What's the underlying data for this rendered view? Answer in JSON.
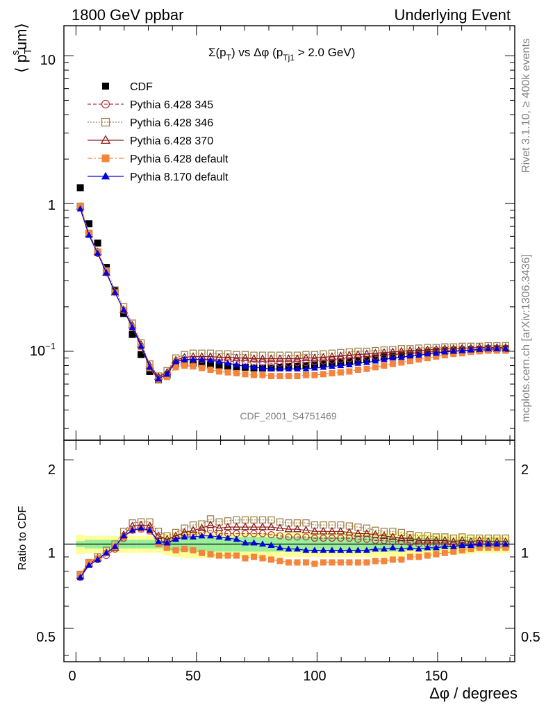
{
  "header": {
    "left": "1800 GeV ppbar",
    "right": "Underlying Event"
  },
  "side": {
    "rivet": "Rivet 3.1.10, ≥ 400k events",
    "mcplots": "mcplots.cern.ch [arXiv:1306.3436]"
  },
  "watermark": "CDF_2001_S4751469",
  "main_title": {
    "prefix": "Σ(p",
    "sub1": "T",
    "mid": ") vs Δφ (p",
    "sub2": "Tj1",
    "suffix": " > 2.0 GeV)"
  },
  "ylabel": {
    "open": "⟨ p",
    "sub": "T",
    "sup": "s",
    "rest": "um⟩"
  },
  "ratio_ylabel": "Ratio to CDF",
  "xlabel": "Δφ / degrees",
  "main_ticks": {
    "ten": "10",
    "one": "1",
    "tenth_base": "10",
    "tenth_exp": "−1"
  },
  "ratio_ticks": [
    "2",
    "1",
    "0.5"
  ],
  "x_ticks": [
    "0",
    "50",
    "100",
    "150"
  ],
  "legend": [
    {
      "label": "CDF",
      "color": "#000000",
      "marker": "filled-square"
    },
    {
      "label": "Pythia 6.428 345",
      "color": "#b03a48",
      "marker": "open-circle"
    },
    {
      "label": "Pythia 6.428 346",
      "color": "#a0804b",
      "marker": "open-square"
    },
    {
      "label": "Pythia 6.428 370",
      "color": "#8b1a1a",
      "marker": "open-triangle"
    },
    {
      "label": "Pythia 6.428 default",
      "color": "#f5843c",
      "marker": "filled-square"
    },
    {
      "label": "Pythia 8.170 default",
      "color": "#0000dd",
      "marker": "filled-triangle"
    }
  ],
  "chart_data": {
    "type": "scatter",
    "x_unit": "degrees",
    "x": [
      1.8,
      5.4,
      9,
      12.6,
      16.2,
      19.8,
      23.4,
      27,
      30.6,
      34.2,
      37.8,
      41.4,
      45,
      48.6,
      52.2,
      55.8,
      59.4,
      63,
      66.6,
      70.2,
      73.8,
      77.4,
      81,
      84.6,
      88.2,
      91.8,
      95.4,
      99,
      102.6,
      106.2,
      109.8,
      113.4,
      117,
      120.6,
      124.2,
      127.8,
      131.4,
      135,
      138.6,
      142.2,
      145.8,
      149.4,
      153,
      156.6,
      160.2,
      163.8,
      167.4,
      171,
      174.6,
      178.2
    ],
    "xlim": [
      -5,
      182
    ],
    "main_ylim": [
      0.025,
      16
    ],
    "main_yscale": "log",
    "ratio_ylim": [
      0.38,
      2.35
    ],
    "ratio_yscale": "log",
    "series": [
      {
        "name": "CDF",
        "values": [
          1.28,
          0.73,
          0.54,
          0.37,
          0.26,
          0.18,
          0.13,
          0.095,
          0.073,
          0.064,
          0.069,
          0.082,
          0.083,
          0.083,
          0.082,
          0.081,
          0.08,
          0.079,
          0.078,
          0.078,
          0.077,
          0.077,
          0.077,
          0.078,
          0.079,
          0.079,
          0.08,
          0.081,
          0.082,
          0.083,
          0.084,
          0.085,
          0.087,
          0.088,
          0.09,
          0.092,
          0.093,
          0.095,
          0.096,
          0.098,
          0.099,
          0.1,
          0.101,
          0.102,
          0.102,
          0.103,
          0.103,
          0.104,
          0.104,
          0.104
        ]
      },
      {
        "name": "Pythia 6.428 345",
        "values": [
          0.94,
          0.62,
          0.46,
          0.34,
          0.25,
          0.19,
          0.145,
          0.108,
          0.078,
          0.066,
          0.07,
          0.083,
          0.087,
          0.088,
          0.088,
          0.088,
          0.087,
          0.086,
          0.085,
          0.085,
          0.084,
          0.084,
          0.083,
          0.083,
          0.083,
          0.084,
          0.084,
          0.085,
          0.086,
          0.087,
          0.088,
          0.089,
          0.09,
          0.091,
          0.092,
          0.094,
          0.095,
          0.096,
          0.097,
          0.098,
          0.099,
          0.1,
          0.101,
          0.101,
          0.101,
          0.102,
          0.102,
          0.103,
          0.103,
          0.102
        ]
      },
      {
        "name": "Pythia 6.428 346",
        "values": [
          0.96,
          0.63,
          0.47,
          0.35,
          0.26,
          0.2,
          0.155,
          0.114,
          0.082,
          0.068,
          0.074,
          0.09,
          0.095,
          0.097,
          0.097,
          0.097,
          0.096,
          0.096,
          0.095,
          0.095,
          0.094,
          0.094,
          0.094,
          0.094,
          0.094,
          0.094,
          0.095,
          0.095,
          0.096,
          0.097,
          0.098,
          0.099,
          0.1,
          0.1,
          0.101,
          0.102,
          0.103,
          0.104,
          0.104,
          0.105,
          0.106,
          0.106,
          0.107,
          0.107,
          0.108,
          0.108,
          0.108,
          0.109,
          0.109,
          0.109
        ]
      },
      {
        "name": "Pythia 6.428 370",
        "values": [
          0.95,
          0.62,
          0.47,
          0.34,
          0.25,
          0.19,
          0.15,
          0.111,
          0.08,
          0.067,
          0.072,
          0.087,
          0.091,
          0.092,
          0.092,
          0.092,
          0.091,
          0.091,
          0.09,
          0.09,
          0.089,
          0.089,
          0.089,
          0.089,
          0.089,
          0.089,
          0.09,
          0.09,
          0.091,
          0.092,
          0.093,
          0.094,
          0.095,
          0.096,
          0.097,
          0.098,
          0.099,
          0.1,
          0.101,
          0.101,
          0.102,
          0.103,
          0.104,
          0.104,
          0.105,
          0.105,
          0.106,
          0.106,
          0.106,
          0.106
        ]
      },
      {
        "name": "Pythia 6.428 default",
        "values": [
          0.96,
          0.63,
          0.47,
          0.35,
          0.25,
          0.19,
          0.145,
          0.107,
          0.077,
          0.064,
          0.067,
          0.078,
          0.08,
          0.079,
          0.077,
          0.075,
          0.073,
          0.072,
          0.071,
          0.07,
          0.069,
          0.069,
          0.068,
          0.068,
          0.068,
          0.068,
          0.069,
          0.069,
          0.07,
          0.071,
          0.072,
          0.073,
          0.075,
          0.076,
          0.078,
          0.08,
          0.082,
          0.084,
          0.086,
          0.088,
          0.09,
          0.092,
          0.094,
          0.096,
          0.097,
          0.099,
          0.1,
          0.101,
          0.101,
          0.101
        ]
      },
      {
        "name": "Pythia 8.170 default",
        "values": [
          0.92,
          0.61,
          0.46,
          0.34,
          0.25,
          0.19,
          0.145,
          0.108,
          0.078,
          0.065,
          0.07,
          0.085,
          0.088,
          0.088,
          0.088,
          0.087,
          0.085,
          0.083,
          0.081,
          0.079,
          0.078,
          0.077,
          0.076,
          0.076,
          0.076,
          0.076,
          0.076,
          0.077,
          0.078,
          0.079,
          0.08,
          0.081,
          0.083,
          0.084,
          0.086,
          0.088,
          0.09,
          0.091,
          0.093,
          0.094,
          0.096,
          0.097,
          0.099,
          0.1,
          0.101,
          0.102,
          0.103,
          0.104,
          0.104,
          0.104
        ]
      }
    ],
    "ratio_series": [
      {
        "name": "Pythia 6.428 345",
        "values": [
          0.76,
          0.85,
          0.88,
          0.91,
          0.96,
          1.05,
          1.12,
          1.13,
          1.12,
          1.03,
          1.01,
          1.05,
          1.08,
          1.08,
          1.1,
          1.12,
          1.09,
          1.09,
          1.09,
          1.09,
          1.09,
          1.09,
          1.08,
          1.07,
          1.06,
          1.06,
          1.06,
          1.05,
          1.05,
          1.05,
          1.05,
          1.05,
          1.04,
          1.04,
          1.03,
          1.03,
          1.02,
          1.02,
          1.01,
          1,
          1,
          1,
          1,
          0.99,
          0.99,
          0.99,
          0.99,
          0.99,
          0.99,
          0.98
        ]
      },
      {
        "name": "Pythia 6.428 346",
        "values": [
          0.78,
          0.86,
          0.9,
          0.95,
          1,
          1.11,
          1.19,
          1.2,
          1.2,
          1.11,
          1.07,
          1.1,
          1.14,
          1.17,
          1.18,
          1.23,
          1.2,
          1.21,
          1.22,
          1.22,
          1.22,
          1.22,
          1.22,
          1.2,
          1.19,
          1.19,
          1.19,
          1.17,
          1.17,
          1.17,
          1.17,
          1.16,
          1.15,
          1.14,
          1.12,
          1.11,
          1.11,
          1.1,
          1.08,
          1.07,
          1.07,
          1.06,
          1.06,
          1.05,
          1.06,
          1.05,
          1.05,
          1.05,
          1.05,
          1.05
        ]
      },
      {
        "name": "Pythia 6.428 370",
        "values": [
          0.77,
          0.85,
          0.89,
          0.93,
          0.97,
          1.08,
          1.16,
          1.17,
          1.16,
          1.07,
          1.04,
          1.07,
          1.1,
          1.12,
          1.14,
          1.17,
          1.14,
          1.15,
          1.15,
          1.15,
          1.15,
          1.15,
          1.15,
          1.14,
          1.13,
          1.13,
          1.12,
          1.11,
          1.11,
          1.11,
          1.11,
          1.1,
          1.09,
          1.09,
          1.08,
          1.07,
          1.06,
          1.05,
          1.05,
          1.03,
          1.03,
          1.03,
          1.03,
          1.02,
          1.03,
          1.02,
          1.03,
          1.02,
          1.02,
          1.02
        ]
      },
      {
        "name": "Pythia 6.428 default",
        "values": [
          0.78,
          0.86,
          0.89,
          0.93,
          0.98,
          1.06,
          1.12,
          1.13,
          1.11,
          1,
          0.97,
          0.95,
          0.96,
          0.95,
          0.93,
          0.92,
          0.91,
          0.91,
          0.91,
          0.89,
          0.9,
          0.89,
          0.88,
          0.87,
          0.86,
          0.86,
          0.86,
          0.85,
          0.86,
          0.86,
          0.86,
          0.86,
          0.86,
          0.86,
          0.87,
          0.87,
          0.88,
          0.88,
          0.9,
          0.9,
          0.91,
          0.92,
          0.93,
          0.94,
          0.95,
          0.96,
          0.97,
          0.97,
          0.97,
          0.97
        ]
      },
      {
        "name": "Pythia 8.170 default",
        "values": [
          0.76,
          0.84,
          0.88,
          0.93,
          0.98,
          1.07,
          1.12,
          1.14,
          1.12,
          1.02,
          1.01,
          1.04,
          1.06,
          1.06,
          1.07,
          1.07,
          1.06,
          1.05,
          1.04,
          1.01,
          1.01,
          1,
          0.99,
          0.97,
          0.96,
          0.96,
          0.95,
          0.95,
          0.95,
          0.95,
          0.95,
          0.95,
          0.95,
          0.95,
          0.96,
          0.96,
          0.97,
          0.96,
          0.97,
          0.96,
          0.97,
          0.97,
          0.98,
          0.98,
          0.99,
          0.99,
          1,
          1,
          1,
          1
        ]
      }
    ],
    "band_inner": [
      0.025,
      0.035,
      0.035,
      0.035,
      0.035,
      0.035,
      0.035,
      0.035,
      0.035,
      0.035,
      0.05,
      0.06,
      0.06,
      0.06,
      0.06,
      0.06,
      0.06,
      0.06,
      0.06,
      0.06,
      0.06,
      0.06,
      0.06,
      0.06,
      0.06,
      0.06,
      0.06,
      0.06,
      0.06,
      0.06,
      0.06,
      0.06,
      0.06,
      0.06,
      0.06,
      0.06,
      0.06,
      0.06,
      0.05,
      0.05,
      0.05,
      0.05,
      0.04,
      0.04,
      0.04,
      0.04,
      0.035,
      0.035,
      0.035,
      0.035
    ],
    "band_outer": [
      0.08,
      0.07,
      0.07,
      0.07,
      0.07,
      0.07,
      0.07,
      0.07,
      0.07,
      0.07,
      0.09,
      0.1,
      0.11,
      0.11,
      0.11,
      0.11,
      0.11,
      0.1,
      0.1,
      0.1,
      0.1,
      0.1,
      0.1,
      0.1,
      0.1,
      0.1,
      0.1,
      0.1,
      0.1,
      0.1,
      0.1,
      0.1,
      0.1,
      0.1,
      0.1,
      0.1,
      0.1,
      0.1,
      0.09,
      0.09,
      0.09,
      0.09,
      0.08,
      0.08,
      0.08,
      0.08,
      0.07,
      0.07,
      0.07,
      0.07
    ],
    "colors": {
      "band_inner": "#99ee99",
      "band_outer": "#ffff99"
    }
  }
}
